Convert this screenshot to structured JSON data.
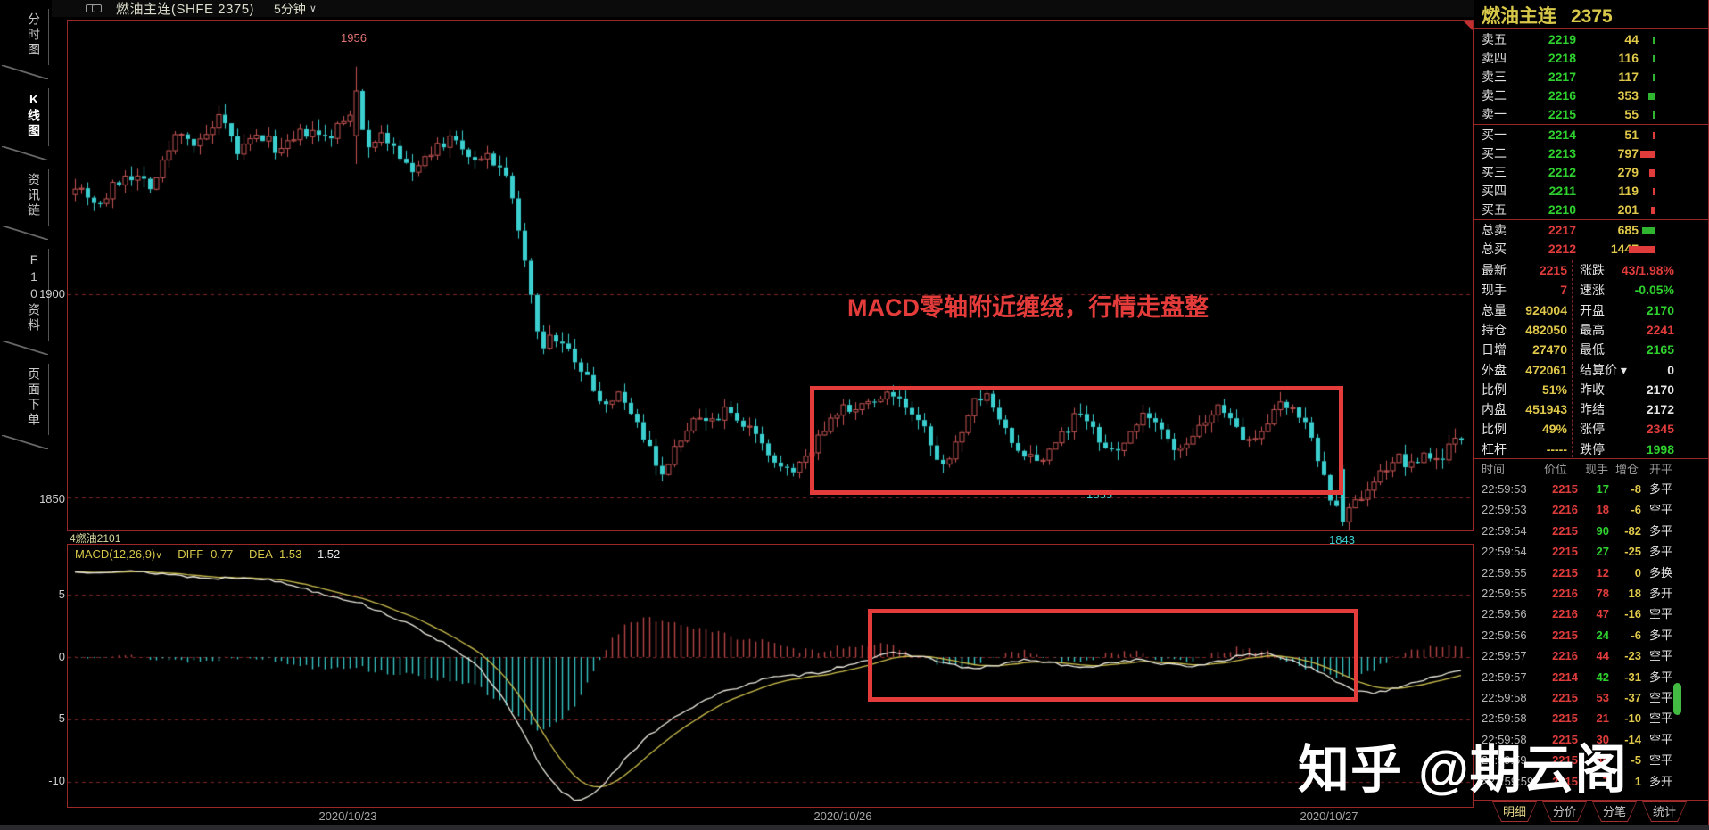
{
  "title_bar": {
    "symbol": "燃油主连(SHFE 2375)",
    "period": "5分钟",
    "caret": "∨"
  },
  "sidebar": {
    "tabs": [
      {
        "label": "分时图",
        "active": false
      },
      {
        "label": "K线图",
        "active": true
      },
      {
        "label": "资讯链",
        "active": false
      },
      {
        "label": "F10资料",
        "active": false
      },
      {
        "label": "页面下单",
        "active": false
      }
    ]
  },
  "chart": {
    "price_axis": [
      "1900",
      "1850"
    ],
    "macd_axis": [
      "5",
      "0",
      "-5",
      "-10"
    ],
    "date_axis": [
      "2020/10/23",
      "2020/10/26",
      "2020/10/27"
    ],
    "markers": {
      "high": "1956",
      "box_low": "1855",
      "low": "1843"
    },
    "annotation": "MACD零轴附近缠绕，行情走盘整",
    "sub_label": "4燃油2101",
    "indicator": {
      "name": "MACD(12,26,9)",
      "caret": "∨",
      "diff_label": "DIFF",
      "diff": "-0.77",
      "dea_label": "DEA",
      "dea": "-1.53",
      "macd": "1.52"
    }
  },
  "quote_panel": {
    "title": "燃油主连",
    "title_value": "2375",
    "order_book": {
      "asks": [
        [
          "卖五",
          "2219",
          "44"
        ],
        [
          "卖四",
          "2218",
          "116"
        ],
        [
          "卖三",
          "2217",
          "117"
        ],
        [
          "卖二",
          "2216",
          "353"
        ],
        [
          "卖一",
          "2215",
          "55"
        ]
      ],
      "bids": [
        [
          "买一",
          "2214",
          "51"
        ],
        [
          "买二",
          "2213",
          "797"
        ],
        [
          "买三",
          "2212",
          "279"
        ],
        [
          "买四",
          "2211",
          "119"
        ],
        [
          "买五",
          "2210",
          "201"
        ]
      ],
      "totals": [
        [
          "总卖",
          "2217",
          "685",
          "green"
        ],
        [
          "总买",
          "2212",
          "1447",
          "red"
        ]
      ]
    },
    "stats_left": [
      [
        "最新",
        "2215",
        "red"
      ],
      [
        "现手",
        "7",
        "red"
      ],
      [
        "总量",
        "924004",
        "yellow"
      ],
      [
        "持仓",
        "482050",
        "yellow"
      ],
      [
        "日增",
        "27470",
        "yellow"
      ],
      [
        "外盘",
        "472061",
        "yellow"
      ],
      [
        "比例",
        "51%",
        "yellow"
      ],
      [
        "内盘",
        "451943",
        "yellow"
      ],
      [
        "比例",
        "49%",
        "yellow"
      ],
      [
        "杠杆",
        "-----",
        "yellow"
      ]
    ],
    "stats_right": [
      [
        "涨跌",
        "43/1.98%",
        "red",
        false
      ],
      [
        "速涨",
        "-0.05%",
        "green",
        false
      ],
      [
        "开盘",
        "2170",
        "green",
        false
      ],
      [
        "最高",
        "2241",
        "red",
        false
      ],
      [
        "最低",
        "2165",
        "green",
        false
      ],
      [
        "结算价",
        "0",
        "white",
        true
      ],
      [
        "昨收",
        "2170",
        "white",
        false
      ],
      [
        "昨结",
        "2172",
        "white",
        false
      ],
      [
        "涨停",
        "2345",
        "red",
        false
      ],
      [
        "跌停",
        "1998",
        "green",
        false
      ]
    ],
    "tick_table": {
      "headers": [
        "时间",
        "价位",
        "现手",
        "增仓",
        "开平"
      ],
      "rows": [
        [
          "22:59:53",
          "2215",
          "17",
          "-8",
          "多平",
          "green",
          false
        ],
        [
          "22:59:53",
          "2216",
          "18",
          "-6",
          "空平",
          "red",
          false
        ],
        [
          "22:59:54",
          "2215",
          "90",
          "-82",
          "多平",
          "green",
          false
        ],
        [
          "22:59:54",
          "2215",
          "27",
          "-25",
          "多平",
          "green",
          false
        ],
        [
          "22:59:55",
          "2215",
          "12",
          "0",
          "多换",
          "red",
          false
        ],
        [
          "22:59:55",
          "2216",
          "78",
          "18",
          "多开",
          "red",
          false
        ],
        [
          "22:59:56",
          "2216",
          "47",
          "-16",
          "空平",
          "red",
          false
        ],
        [
          "22:59:56",
          "2215",
          "24",
          "-6",
          "多平",
          "green",
          false
        ],
        [
          "22:59:57",
          "2216",
          "44",
          "-23",
          "空平",
          "red",
          false
        ],
        [
          "22:59:57",
          "2214",
          "42",
          "-31",
          "多平",
          "green",
          false
        ],
        [
          "22:59:58",
          "2215",
          "53",
          "-37",
          "空平",
          "red",
          false
        ],
        [
          "22:59:58",
          "2215",
          "21",
          "-10",
          "空平",
          "red",
          false
        ],
        [
          "22:59:58",
          "2215",
          "30",
          "-14",
          "空平",
          "red",
          false
        ],
        [
          "22:59:59",
          "2215",
          "46",
          "-5",
          "空平",
          "red",
          false
        ],
        [
          "22:59:59",
          "2215",
          "7",
          "1",
          "多开",
          "red",
          true
        ]
      ]
    },
    "tabs": [
      [
        "明细",
        true
      ],
      [
        "分价",
        false
      ],
      [
        "分笔",
        false
      ],
      [
        "统计",
        false
      ]
    ]
  },
  "watermark": "知乎 @期云阁",
  "colors": {
    "up": "#c65454",
    "down": "#3bcfcf",
    "grid": "#7c2424",
    "hist_pos": "#b64545",
    "hist_neg": "#38c5c5",
    "diff_line": "#eceadf",
    "dea_line": "#cdbf4e",
    "red": "#e03c3c",
    "green": "#2fd12f",
    "yellow": "#e0c84a",
    "white": "#e6e6e6",
    "accent_box": "#e43b3b",
    "panel_border": "#9a2828"
  },
  "chart_data": [
    {
      "type": "candlestick",
      "title": "燃油主连(SHFE 2375) 5分钟",
      "x_dates": [
        "2020/10/23",
        "2020/10/26",
        "2020/10/27"
      ],
      "ylim": [
        1841,
        1967
      ],
      "y_ticks": [
        1900,
        1850
      ],
      "high": 1956,
      "low": 1843,
      "consolidation_range": [
        1855,
        1877
      ],
      "price_path": [
        [
          80,
          1928
        ],
        [
          110,
          1922
        ],
        [
          140,
          1930
        ],
        [
          170,
          1927
        ],
        [
          200,
          1941
        ],
        [
          220,
          1936
        ],
        [
          245,
          1943
        ],
        [
          265,
          1935
        ],
        [
          290,
          1939
        ],
        [
          315,
          1935
        ],
        [
          340,
          1940
        ],
        [
          365,
          1938
        ],
        [
          390,
          1944
        ],
        [
          397,
          1950
        ],
        [
          410,
          1937
        ],
        [
          425,
          1940
        ],
        [
          445,
          1934
        ],
        [
          465,
          1930
        ],
        [
          485,
          1935
        ],
        [
          505,
          1938
        ],
        [
          525,
          1933
        ],
        [
          545,
          1934
        ],
        [
          565,
          1929
        ],
        [
          580,
          1916
        ],
        [
          592,
          1902
        ],
        [
          605,
          1886
        ],
        [
          620,
          1890
        ],
        [
          635,
          1887
        ],
        [
          650,
          1880
        ],
        [
          665,
          1877
        ],
        [
          680,
          1872
        ],
        [
          695,
          1875
        ],
        [
          710,
          1870
        ],
        [
          725,
          1863
        ],
        [
          740,
          1856
        ],
        [
          755,
          1861
        ],
        [
          770,
          1867
        ],
        [
          785,
          1871
        ],
        [
          800,
          1869
        ],
        [
          815,
          1873
        ],
        [
          830,
          1869
        ],
        [
          845,
          1865
        ],
        [
          860,
          1861
        ],
        [
          875,
          1857
        ],
        [
          890,
          1856
        ],
        [
          905,
          1861
        ],
        [
          920,
          1866
        ],
        [
          935,
          1870
        ],
        [
          950,
          1872
        ],
        [
          965,
          1874
        ],
        [
          980,
          1872
        ],
        [
          995,
          1876
        ],
        [
          1010,
          1873
        ],
        [
          1025,
          1869
        ],
        [
          1040,
          1865
        ],
        [
          1055,
          1857
        ],
        [
          1070,
          1863
        ],
        [
          1085,
          1872
        ],
        [
          1100,
          1876
        ],
        [
          1115,
          1870
        ],
        [
          1130,
          1865
        ],
        [
          1145,
          1861
        ],
        [
          1160,
          1858
        ],
        [
          1175,
          1862
        ],
        [
          1190,
          1866
        ],
        [
          1205,
          1870
        ],
        [
          1220,
          1867
        ],
        [
          1235,
          1863
        ],
        [
          1250,
          1861
        ],
        [
          1265,
          1866
        ],
        [
          1280,
          1870
        ],
        [
          1295,
          1867
        ],
        [
          1310,
          1863
        ],
        [
          1325,
          1861
        ],
        [
          1340,
          1866
        ],
        [
          1355,
          1870
        ],
        [
          1370,
          1872
        ],
        [
          1385,
          1867
        ],
        [
          1400,
          1863
        ],
        [
          1415,
          1868
        ],
        [
          1430,
          1872
        ],
        [
          1445,
          1874
        ],
        [
          1460,
          1869
        ],
        [
          1475,
          1861
        ],
        [
          1490,
          1850
        ],
        [
          1505,
          1844
        ],
        [
          1520,
          1849
        ],
        [
          1535,
          1853
        ],
        [
          1550,
          1857
        ],
        [
          1565,
          1860
        ],
        [
          1580,
          1857
        ],
        [
          1595,
          1861
        ],
        [
          1610,
          1859
        ],
        [
          1625,
          1863
        ],
        [
          1640,
          1865
        ],
        [
          1648,
          1862
        ]
      ]
    },
    {
      "type": "macd",
      "params": [
        12,
        26,
        9
      ],
      "diff_last": -0.77,
      "dea_last": -1.53,
      "macd_last": 1.52,
      "ylim": [
        -12,
        9
      ],
      "y_ticks": [
        5,
        0,
        -5,
        -10
      ],
      "diff_path": [
        [
          80,
          6.8
        ],
        [
          130,
          6.9
        ],
        [
          180,
          6.7
        ],
        [
          230,
          6.3
        ],
        [
          280,
          6.4
        ],
        [
          320,
          5.9
        ],
        [
          360,
          5.1
        ],
        [
          400,
          4.4
        ],
        [
          440,
          3.2
        ],
        [
          480,
          1.8
        ],
        [
          510,
          0.6
        ],
        [
          535,
          -0.8
        ],
        [
          560,
          -3
        ],
        [
          585,
          -6
        ],
        [
          605,
          -8.8
        ],
        [
          625,
          -10.6
        ],
        [
          645,
          -11.5
        ],
        [
          660,
          -11.2
        ],
        [
          680,
          -9.8
        ],
        [
          700,
          -8.2
        ],
        [
          725,
          -6.4
        ],
        [
          750,
          -5
        ],
        [
          775,
          -4
        ],
        [
          800,
          -3.1
        ],
        [
          830,
          -2.3
        ],
        [
          860,
          -1.7
        ],
        [
          890,
          -1.5
        ],
        [
          920,
          -1.2
        ],
        [
          950,
          -0.6
        ],
        [
          975,
          -0.1
        ],
        [
          1000,
          0.3
        ],
        [
          1030,
          0.1
        ],
        [
          1060,
          -0.5
        ],
        [
          1090,
          -1
        ],
        [
          1120,
          -0.6
        ],
        [
          1150,
          -0.2
        ],
        [
          1180,
          -0.5
        ],
        [
          1210,
          -0.9
        ],
        [
          1240,
          -0.5
        ],
        [
          1270,
          -0.2
        ],
        [
          1300,
          -0.5
        ],
        [
          1330,
          -0.8
        ],
        [
          1360,
          -0.4
        ],
        [
          1390,
          0.1
        ],
        [
          1420,
          0.3
        ],
        [
          1450,
          -0.3
        ],
        [
          1480,
          -1.3
        ],
        [
          1510,
          -2.5
        ],
        [
          1540,
          -2.9
        ],
        [
          1570,
          -2.3
        ],
        [
          1600,
          -1.7
        ],
        [
          1625,
          -1.2
        ],
        [
          1648,
          -0.77
        ]
      ]
    }
  ]
}
